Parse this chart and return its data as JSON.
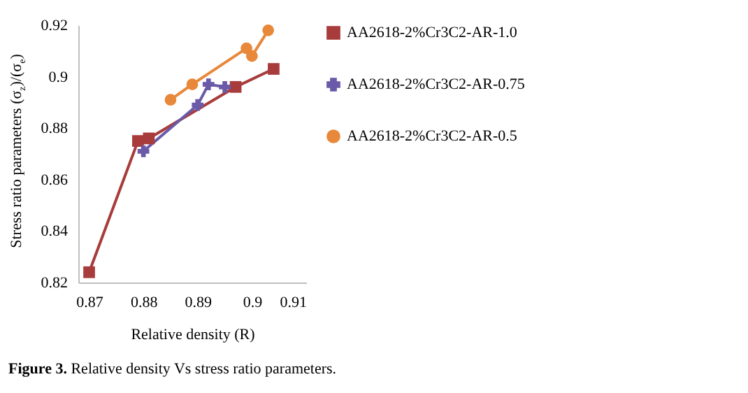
{
  "chart_data": {
    "type": "line",
    "xlabel": "Relative density (R)",
    "ylabel": "Stress ratio parameters (σ$_{z}$)/(σ$_{e}$)",
    "xlim": [
      0.868,
      0.91
    ],
    "xticks": [
      0.87,
      0.88,
      0.89,
      0.9,
      0.91
    ],
    "ylim": [
      0.82,
      0.92
    ],
    "yticks": [
      0.82,
      0.84,
      0.86,
      0.88,
      0.9,
      0.92
    ],
    "grid": false,
    "legend": "right",
    "annotations": [
      "Figure 3. Relative density Vs stress ratio parameters."
    ],
    "series": [
      {
        "name": "AA2618-2%Cr3C2-AR-1.0",
        "color": "#a83c3c",
        "marker": "square",
        "x": [
          0.87,
          0.879,
          0.881,
          0.897,
          0.904
        ],
        "values": [
          0.824,
          0.875,
          0.876,
          0.896,
          0.903
        ]
      },
      {
        "name": "AA2618-2%Cr3C2-AR-0.75",
        "color": "#6a5aa8",
        "marker": "cross",
        "x": [
          0.88,
          0.89,
          0.892,
          0.895
        ],
        "values": [
          0.871,
          0.889,
          0.897,
          0.896
        ]
      },
      {
        "name": "AA2618-2%Cr3C2-AR-0.5",
        "color": "#e8883a",
        "marker": "circle",
        "x": [
          0.885,
          0.889,
          0.899,
          0.9,
          0.903
        ],
        "values": [
          0.891,
          0.897,
          0.911,
          0.908,
          0.918
        ]
      }
    ]
  }
}
